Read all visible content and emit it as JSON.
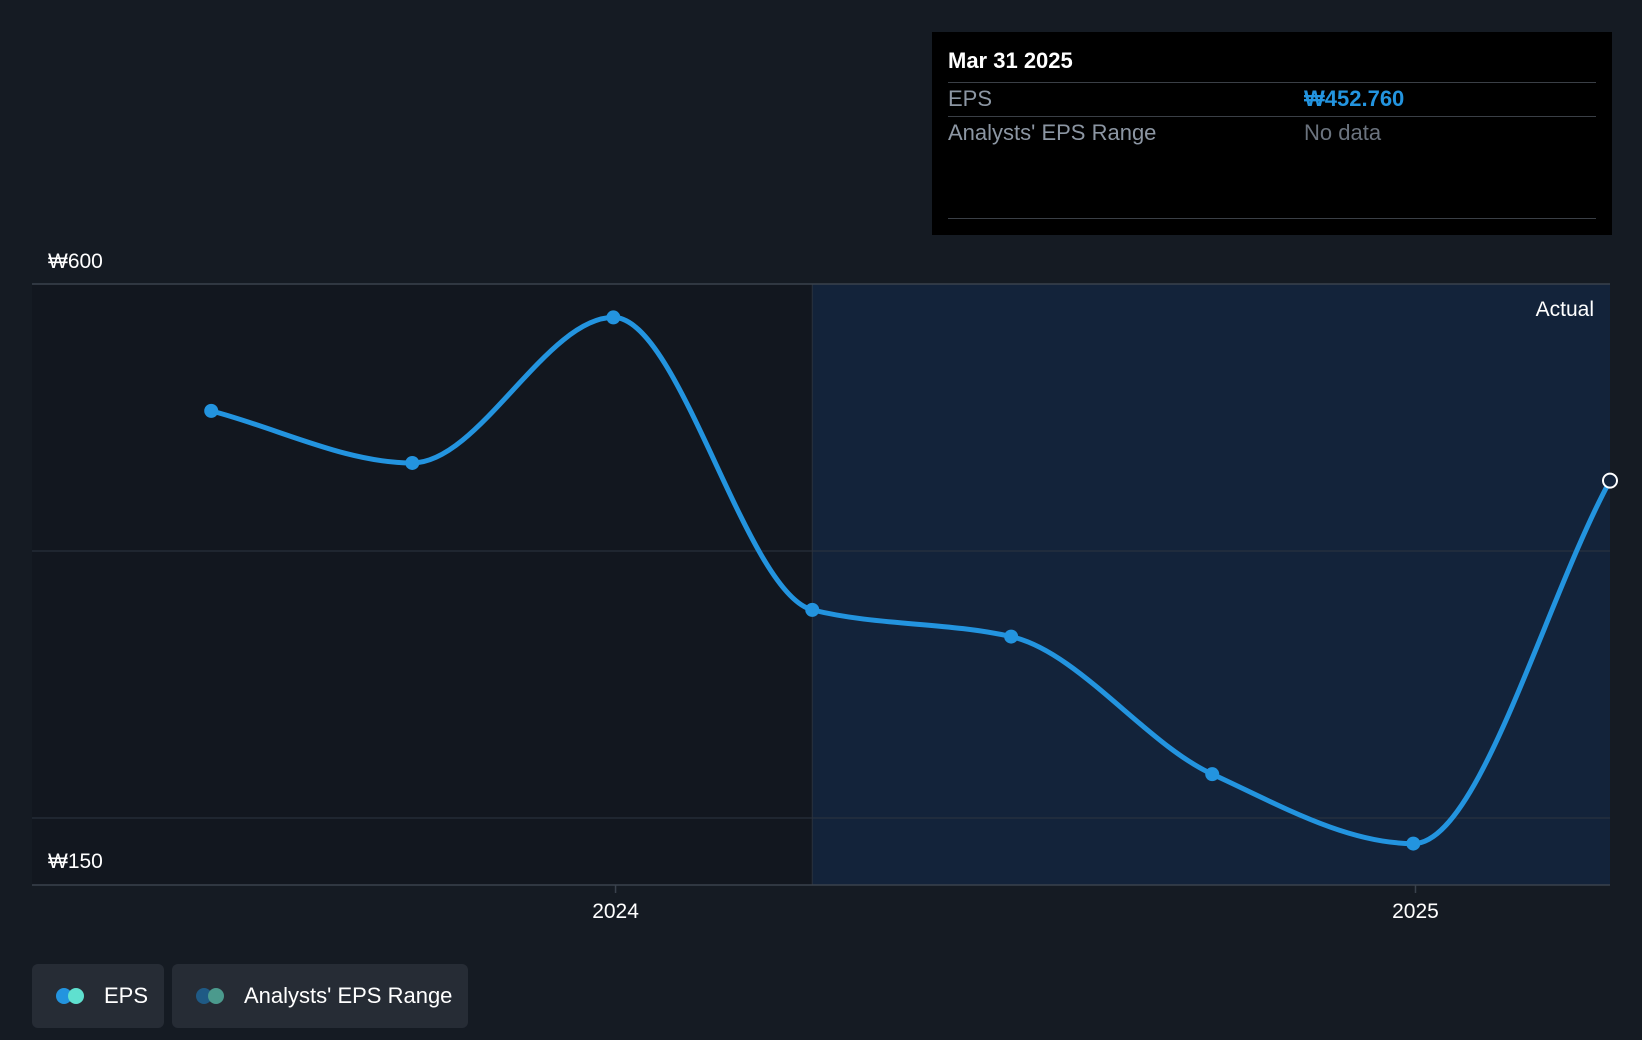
{
  "chart_data": {
    "type": "line",
    "title": "",
    "series": [
      {
        "name": "EPS",
        "color": "#2394df",
        "points": [
          {
            "date": "2023-06-30",
            "value": 505
          },
          {
            "date": "2023-09-30",
            "value": 466
          },
          {
            "date": "2023-12-31",
            "value": 575
          },
          {
            "date": "2024-03-31",
            "value": 356
          },
          {
            "date": "2024-06-30",
            "value": 336
          },
          {
            "date": "2024-09-30",
            "value": 233
          },
          {
            "date": "2024-12-31",
            "value": 181
          },
          {
            "date": "2025-03-31",
            "value": 452.76
          }
        ]
      }
    ],
    "y_ticks": [
      {
        "value": 600,
        "label": "₩600"
      },
      {
        "value": 150,
        "label": "₩150"
      }
    ],
    "x_ticks": [
      {
        "date": "2024-01-01",
        "label": "2024"
      },
      {
        "date": "2025-01-01",
        "label": "2025"
      }
    ],
    "ylim": [
      150,
      600
    ],
    "xlim": [
      "2023-04-09",
      "2025-03-31"
    ],
    "forecast_divider_date": "2024-03-31",
    "region_label": "Actual"
  },
  "tooltip": {
    "date": "Mar 31 2025",
    "rows": [
      {
        "label": "EPS",
        "value": "₩452.760",
        "color": "#2394df"
      },
      {
        "label": "Analysts' EPS Range",
        "value": "No data",
        "color": "#6b737e"
      }
    ]
  },
  "legend": [
    {
      "label": "EPS",
      "color_a": "#2394df",
      "color_b": "#5fe0cf"
    },
    {
      "label": "Analysts' EPS Range",
      "color_a": "#1f5a85",
      "color_b": "#4b9a8d"
    }
  ]
}
